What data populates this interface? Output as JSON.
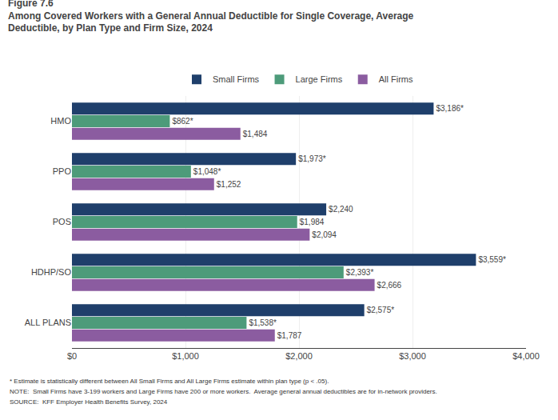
{
  "chart_data": {
    "type": "bar",
    "orientation": "horizontal",
    "title": "Figure 7.6",
    "subtitle": [
      "Among Covered Workers with a General Annual Deductible for Single Coverage, Average",
      "Deductible, by Plan Type and Firm Size, 2024"
    ],
    "categories": [
      "HMO",
      "PPO",
      "POS",
      "HDHP/SO",
      "ALL PLANS"
    ],
    "series": [
      {
        "name": "Small Firms",
        "color": "#1F3F6B",
        "values": [
          3186,
          1973,
          2240,
          3559,
          2575
        ],
        "value_labels": [
          "$3,186*",
          "$1,973*",
          "$2,240",
          "$3,559*",
          "$2,575*"
        ]
      },
      {
        "name": "Large Firms",
        "color": "#4D9B7A",
        "values": [
          862,
          1048,
          1984,
          2393,
          1538
        ],
        "value_labels": [
          "$862*",
          "$1,048*",
          "$1,984",
          "$2,393*",
          "$1,538*"
        ]
      },
      {
        "name": "All Firms",
        "color": "#8B5CA0",
        "values": [
          1484,
          1252,
          2094,
          2666,
          1787
        ],
        "value_labels": [
          "$1,484",
          "$1,252",
          "$2,094",
          "$2,666",
          "$1,787"
        ]
      }
    ],
    "xlim": [
      0,
      4000
    ],
    "xticks": [
      {
        "value": 0,
        "label": "$0"
      },
      {
        "value": 1000,
        "label": "$1,000"
      },
      {
        "value": 2000,
        "label": "$2,000"
      },
      {
        "value": 3000,
        "label": "$3,000"
      },
      {
        "value": 4000,
        "label": "$4,000"
      }
    ],
    "grid": true,
    "legend": "top",
    "data_labels": true,
    "annotations": [
      "* Estimate is statistically different between All Small Firms and All Large Firms estimate within plan type (p < .05).",
      "NOTE:  Small Firms have 3-199 workers and Large Firms have 200 or more workers.  Average general annual deductibles are for in-network providers.",
      "SOURCE:  KFF Employer Health Benefits Survey, 2024"
    ]
  }
}
